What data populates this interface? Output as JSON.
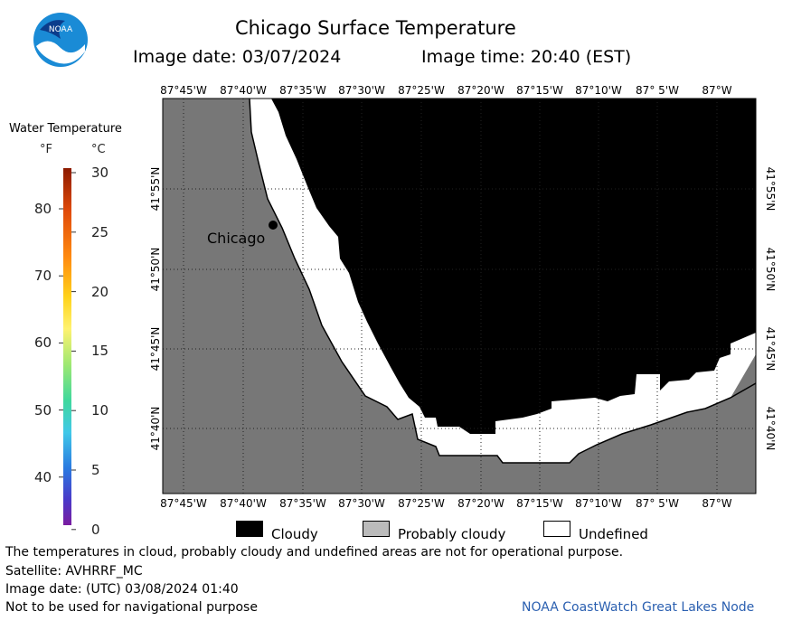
{
  "header": {
    "title": "Chicago Surface Temperature",
    "image_date": "Image date: 03/07/2024",
    "image_time": "Image time: 20:40 (EST)",
    "logo_text": "NOAA"
  },
  "scale": {
    "title": "Water Temperature",
    "unit_f": "°F",
    "unit_c": "°C",
    "f_ticks": [
      "80",
      "70",
      "60",
      "50",
      "40"
    ],
    "c_ticks": [
      "30",
      "25",
      "20",
      "15",
      "10",
      "5",
      "0"
    ]
  },
  "map": {
    "lon_labels": [
      "87°45'W",
      "87°40'W",
      "87°35'W",
      "87°30'W",
      "87°25'W",
      "87°20'W",
      "87°15'W",
      "87°10'W",
      "87° 5'W",
      "87°W"
    ],
    "lat_labels": [
      "41°55'N",
      "41°50'N",
      "41°45'N",
      "41°40'N"
    ],
    "city": "Chicago"
  },
  "legend": {
    "cloudy": "Cloudy",
    "probably_cloudy": "Probably cloudy",
    "undefined": "Undefined"
  },
  "footer": {
    "disclaimer": "The temperatures in cloud, probably cloudy and undefined areas are not for operational purpose.",
    "satellite": "Satellite: AVHRRF_MC",
    "utc_date": "Image date: (UTC) 03/08/2024  01:40",
    "nav_warning": "Not to be used for navigational purpose",
    "credit": "NOAA CoastWatch Great Lakes Node"
  }
}
